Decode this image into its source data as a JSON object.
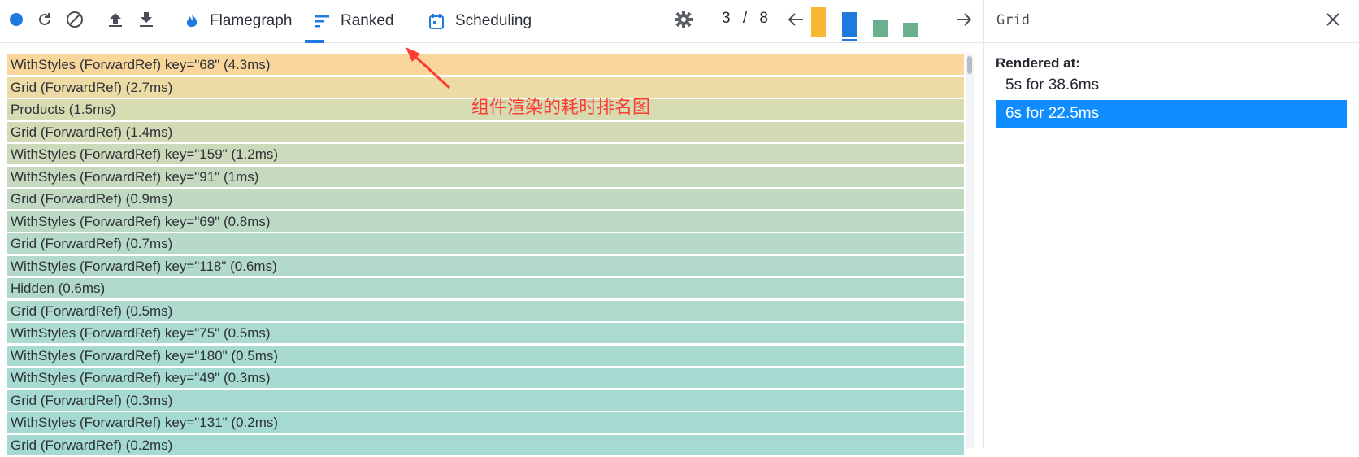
{
  "toolbar": {
    "icons": [
      "record-icon",
      "reload-icon",
      "clear-icon",
      "upload-icon",
      "download-icon"
    ],
    "tabs": [
      {
        "label": "Flamegraph",
        "icon": "flame-icon",
        "active": false
      },
      {
        "label": "Ranked",
        "icon": "ranked-chart-icon",
        "active": true
      },
      {
        "label": "Scheduling",
        "icon": "calendar-icon",
        "active": false
      }
    ],
    "settings_icon": "gear-icon",
    "commit_current": "3",
    "commit_separator": "/",
    "commit_total": "8",
    "prev_icon": "arrow-left-icon",
    "next_icon": "arrow-right-icon",
    "commit_bars": [
      {
        "level": 0.95,
        "color": "#f7b733"
      },
      {
        "level": 0.8,
        "color": "#1f7ae0",
        "selected": true
      },
      {
        "level": 0.55,
        "color": "#6ab08f"
      },
      {
        "level": 0.45,
        "color": "#6ab08f"
      }
    ]
  },
  "ranked_list": {
    "rows": [
      {
        "label": "WithStyles (ForwardRef) key=\"68\" (4.3ms)",
        "color": "#f9d79c"
      },
      {
        "label": "Grid (ForwardRef) (2.7ms)",
        "color": "#eddba6"
      },
      {
        "label": "Products (1.5ms)",
        "color": "#d7dbb2"
      },
      {
        "label": "Grid (ForwardRef) (1.4ms)",
        "color": "#d3dab6"
      },
      {
        "label": "WithStyles (ForwardRef) key=\"159\" (1.2ms)",
        "color": "#ccd9ba"
      },
      {
        "label": "WithStyles (ForwardRef) key=\"91\" (1ms)",
        "color": "#c6d9bf"
      },
      {
        "label": "Grid (ForwardRef) (0.9ms)",
        "color": "#c1d9c3"
      },
      {
        "label": "WithStyles (ForwardRef) key=\"69\" (0.8ms)",
        "color": "#bcd9c6"
      },
      {
        "label": "Grid (ForwardRef) (0.7ms)",
        "color": "#b6d9c9"
      },
      {
        "label": "WithStyles (ForwardRef) key=\"118\" (0.6ms)",
        "color": "#b2d9cb"
      },
      {
        "label": "Hidden (0.6ms)",
        "color": "#b0d9cc"
      },
      {
        "label": "Grid (ForwardRef) (0.5ms)",
        "color": "#addacd"
      },
      {
        "label": "WithStyles (ForwardRef) key=\"75\" (0.5ms)",
        "color": "#abdace"
      },
      {
        "label": "WithStyles (ForwardRef) key=\"180\" (0.5ms)",
        "color": "#a9dacf"
      },
      {
        "label": "WithStyles (ForwardRef) key=\"49\" (0.3ms)",
        "color": "#a7dad0"
      },
      {
        "label": "Grid (ForwardRef) (0.3ms)",
        "color": "#a6dad0"
      },
      {
        "label": "WithStyles (ForwardRef) key=\"131\" (0.2ms)",
        "color": "#a5dad1"
      },
      {
        "label": "Grid (ForwardRef) (0.2ms)",
        "color": "#a4dad1"
      }
    ]
  },
  "sidebar": {
    "title": "Grid",
    "close_icon": "close-icon",
    "rendered_at_label": "Rendered at:",
    "renders": [
      {
        "label": "5s for 38.6ms",
        "selected": false
      },
      {
        "label": "6s for 22.5ms",
        "selected": true
      }
    ]
  },
  "annotation": {
    "text": "组件渲染的耗时排名图",
    "color": "#ff3b30"
  }
}
